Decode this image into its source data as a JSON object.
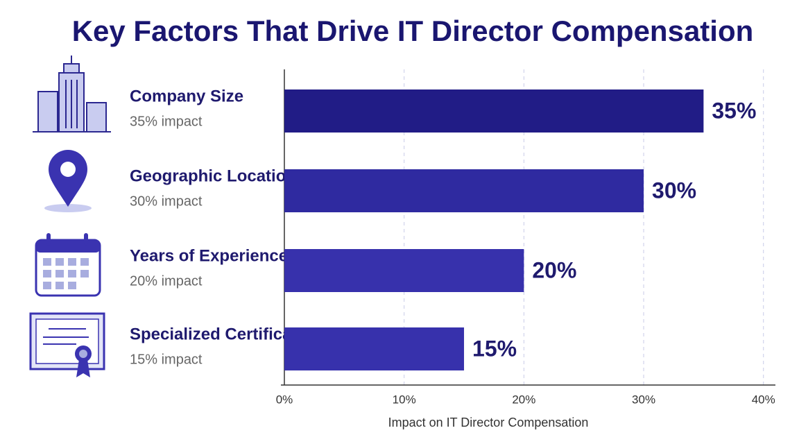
{
  "chart_data": {
    "type": "bar",
    "orientation": "horizontal",
    "title": "Key Factors That Drive IT Director Compensation",
    "categories": [
      "Company Size",
      "Geographic Location",
      "Years of Experience",
      "Specialized Certifications"
    ],
    "category_notes": [
      "35% impact",
      "30% impact",
      "20% impact",
      "15% impact"
    ],
    "values": [
      35,
      30,
      20,
      15
    ],
    "value_labels": [
      "35%",
      "30%",
      "20%",
      "15%"
    ],
    "colors": [
      "#211c86",
      "#2f2aa0",
      "#3731ac",
      "#3731ac"
    ],
    "xlim": [
      0,
      41
    ],
    "xticks": [
      {
        "value": 0,
        "label": "0%"
      },
      {
        "value": 10,
        "label": "10%"
      },
      {
        "value": 20,
        "label": "20%"
      },
      {
        "value": 30,
        "label": "30%"
      },
      {
        "value": 40,
        "label": "40%"
      }
    ],
    "xlabel": "Impact on IT Director Compensation",
    "grid": true
  }
}
